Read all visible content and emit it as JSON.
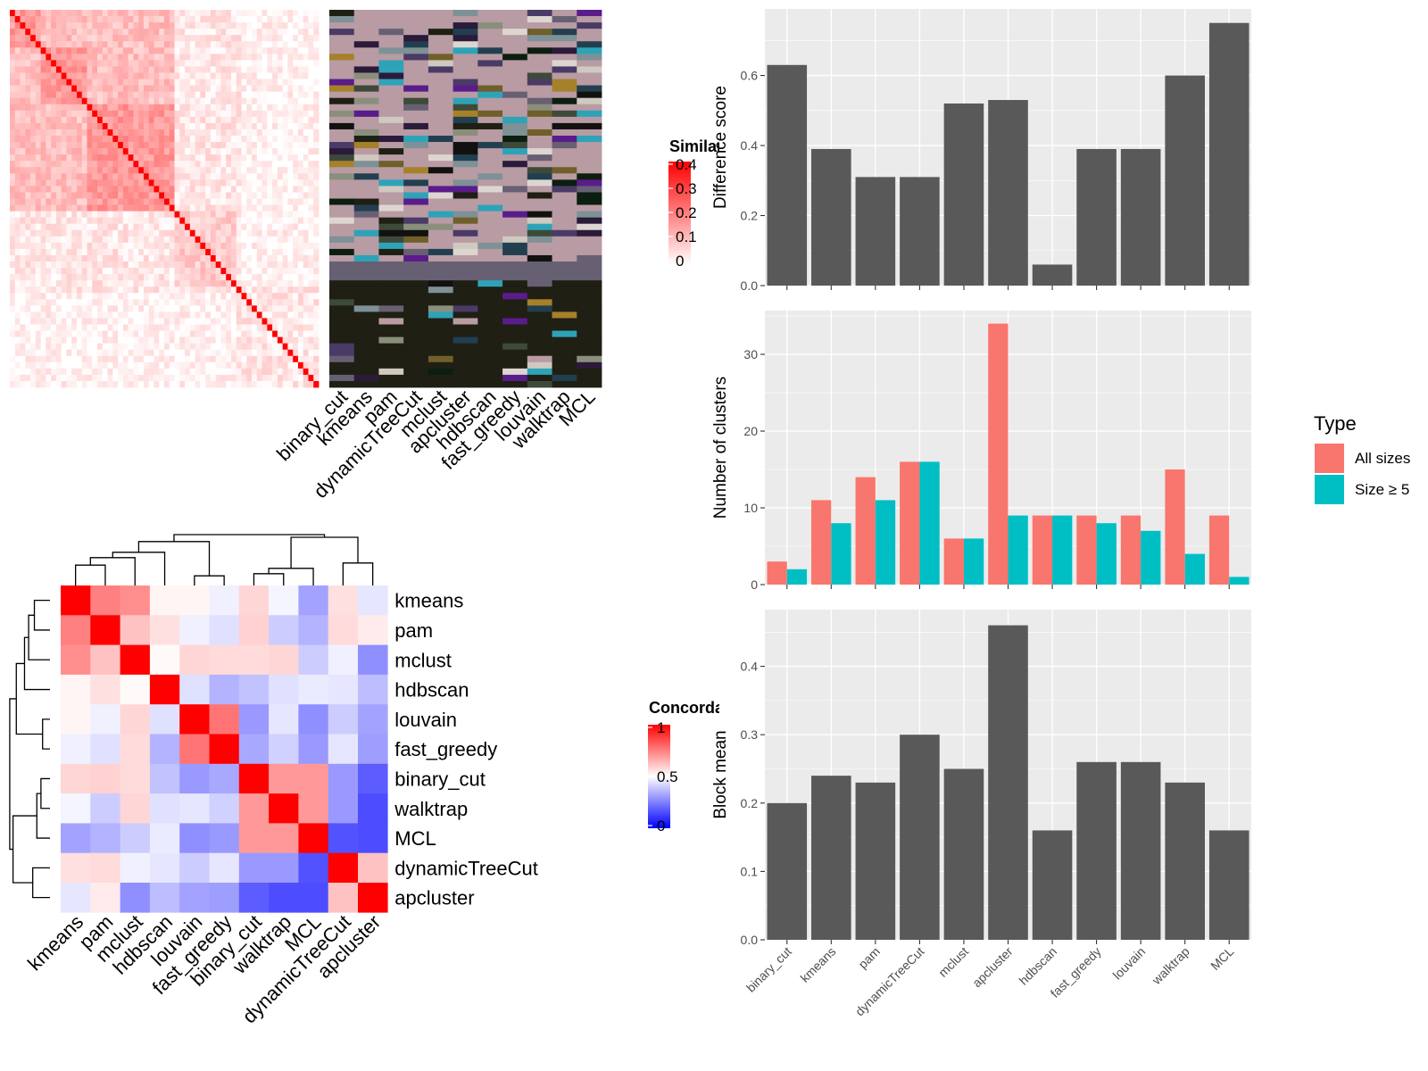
{
  "chart_data": [
    {
      "type": "heatmap",
      "legend_title": "Similarity",
      "legend_ticks": [
        "0.4",
        "0.3",
        "0.2",
        "0.1",
        "0"
      ],
      "scale": {
        "min": 0,
        "max": 0.4,
        "colors": [
          "#ffffff",
          "#ff0000"
        ]
      },
      "column_labels": [
        "binary_cut",
        "kmeans",
        "pam",
        "dynamicTreeCut",
        "mclust",
        "apcluster",
        "hdbscan",
        "fast_greedy",
        "louvain",
        "walktrap",
        "MCL"
      ]
    },
    {
      "type": "heatmap",
      "legend_title": "Concordance",
      "legend_ticks": [
        "1",
        "0.5",
        "0"
      ],
      "scale": {
        "min": 0,
        "max": 1,
        "colors": [
          "#0000ff",
          "#ffffff",
          "#ff0000"
        ]
      },
      "rows": [
        "kmeans",
        "pam",
        "mclust",
        "hdbscan",
        "louvain",
        "fast_greedy",
        "binary_cut",
        "walktrap",
        "MCL",
        "dynamicTreeCut",
        "apcluster"
      ],
      "columns": [
        "kmeans",
        "pam",
        "mclust",
        "hdbscan",
        "louvain",
        "fast_greedy",
        "binary_cut",
        "walktrap",
        "MCL",
        "dynamicTreeCut",
        "apcluster"
      ],
      "values": [
        [
          1.0,
          0.75,
          0.72,
          0.52,
          0.52,
          0.47,
          0.58,
          0.48,
          0.32,
          0.56,
          0.45
        ],
        [
          0.75,
          1.0,
          0.62,
          0.56,
          0.47,
          0.44,
          0.59,
          0.4,
          0.35,
          0.57,
          0.54
        ],
        [
          0.72,
          0.62,
          1.0,
          0.51,
          0.58,
          0.57,
          0.57,
          0.58,
          0.4,
          0.47,
          0.28
        ],
        [
          0.52,
          0.56,
          0.51,
          1.0,
          0.44,
          0.35,
          0.38,
          0.44,
          0.46,
          0.45,
          0.37
        ],
        [
          0.52,
          0.47,
          0.58,
          0.44,
          1.0,
          0.77,
          0.3,
          0.45,
          0.28,
          0.4,
          0.32
        ],
        [
          0.47,
          0.44,
          0.57,
          0.35,
          0.77,
          1.0,
          0.33,
          0.41,
          0.3,
          0.45,
          0.31
        ],
        [
          0.58,
          0.59,
          0.57,
          0.38,
          0.3,
          0.33,
          1.0,
          0.7,
          0.7,
          0.3,
          0.18
        ],
        [
          0.48,
          0.4,
          0.58,
          0.44,
          0.45,
          0.41,
          0.7,
          1.0,
          0.7,
          0.3,
          0.15
        ],
        [
          0.32,
          0.35,
          0.4,
          0.46,
          0.28,
          0.3,
          0.7,
          0.7,
          1.0,
          0.16,
          0.15
        ],
        [
          0.56,
          0.57,
          0.47,
          0.45,
          0.4,
          0.45,
          0.3,
          0.3,
          0.16,
          1.0,
          0.62
        ],
        [
          0.45,
          0.54,
          0.28,
          0.37,
          0.32,
          0.31,
          0.18,
          0.15,
          0.15,
          0.62,
          1.0
        ]
      ]
    },
    {
      "type": "bar",
      "ylabel": "Difference score",
      "categories": [
        "binary_cut",
        "kmeans",
        "pam",
        "dynamicTreeCut",
        "mclust",
        "apcluster",
        "hdbscan",
        "fast_greedy",
        "louvain",
        "walktrap",
        "MCL"
      ],
      "values": [
        0.63,
        0.39,
        0.31,
        0.31,
        0.52,
        0.53,
        0.06,
        0.39,
        0.39,
        0.6,
        0.75
      ],
      "ylim": [
        0,
        0.79
      ],
      "yticks": [
        "0.0",
        "0.2",
        "0.4",
        "0.6"
      ],
      "show_xtick_labels": false
    },
    {
      "type": "bar",
      "ylabel": "Number of clusters",
      "categories": [
        "binary_cut",
        "kmeans",
        "pam",
        "dynamicTreeCut",
        "mclust",
        "apcluster",
        "hdbscan",
        "fast_greedy",
        "louvain",
        "walktrap",
        "MCL"
      ],
      "series": [
        {
          "name": "All sizes",
          "color": "#F8766D",
          "values": [
            3,
            11,
            14,
            16,
            6,
            34,
            9,
            9,
            9,
            15,
            9
          ]
        },
        {
          "name": "Size ≥ 5",
          "color": "#00BFC4",
          "values": [
            2,
            8,
            11,
            16,
            6,
            9,
            9,
            8,
            7,
            4,
            1
          ]
        }
      ],
      "ylim": [
        0,
        35.7
      ],
      "yticks": [
        "0",
        "10",
        "20",
        "30"
      ],
      "legend_title": "Type",
      "legend_position": "right",
      "show_xtick_labels": false
    },
    {
      "type": "bar",
      "ylabel": "Block mean",
      "categories": [
        "binary_cut",
        "kmeans",
        "pam",
        "dynamicTreeCut",
        "mclust",
        "apcluster",
        "hdbscan",
        "fast_greedy",
        "louvain",
        "walktrap",
        "MCL"
      ],
      "values": [
        0.2,
        0.24,
        0.23,
        0.3,
        0.25,
        0.46,
        0.16,
        0.26,
        0.26,
        0.23,
        0.16
      ],
      "ylim": [
        0,
        0.483
      ],
      "yticks": [
        "0.0",
        "0.1",
        "0.2",
        "0.3",
        "0.4"
      ],
      "show_xtick_labels": true
    }
  ],
  "colors": {
    "bar": "#595959",
    "panel_bg": "#EBEBEB",
    "grid": "#FFFFFF",
    "all_sizes": "#F8766D",
    "size5": "#00BFC4"
  }
}
